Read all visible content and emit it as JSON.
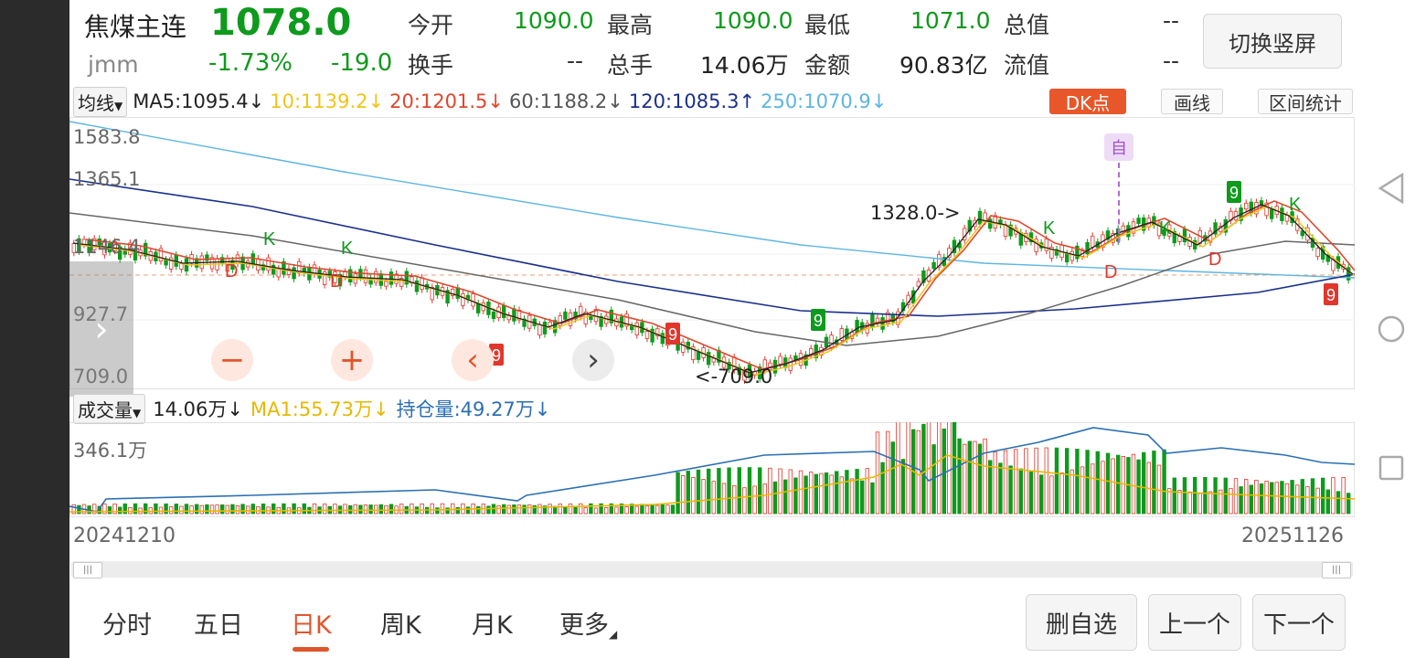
{
  "header": {
    "name": "焦煤主连",
    "code": "jmm",
    "price": "1078.0",
    "change_pct": "-1.73%",
    "change": "-19.0",
    "stats": [
      {
        "label": "今开",
        "value": "1090.0"
      },
      {
        "label": "最高",
        "value": "1090.0"
      },
      {
        "label": "最低",
        "value": "1071.0"
      },
      {
        "label": "总值",
        "value": "--"
      },
      {
        "label": "换手",
        "value": "--"
      },
      {
        "label": "总手",
        "value": "14.06万"
      },
      {
        "label": "金额",
        "value": "90.83亿"
      },
      {
        "label": "流值",
        "value": "--"
      }
    ],
    "switch_button": "切换竖屏"
  },
  "ma_bar": {
    "dropdown": "均线",
    "ma5": "MA5:1095.4↓",
    "ma10": "10:1139.2↓",
    "ma20": "20:1201.5↓",
    "ma60": "60:1188.2↓",
    "ma120": "120:1085.3↑",
    "ma250": "250:1070.9↓",
    "dk_button": "DK点",
    "draw_button": "画线",
    "stats_button": "区间统计"
  },
  "colors": {
    "ma5": "#222222",
    "ma10": "#f0c419",
    "ma20": "#e0462c",
    "ma60": "#666666",
    "ma120": "#1a2f8c",
    "ma250": "#5db5e0",
    "up": "#e0362c",
    "down": "#0e9a1c",
    "signal": "#e8572a"
  },
  "kline": {
    "y_ticks": [
      "1583.8",
      "1365.1",
      "1146.4",
      "927.7",
      "709.0"
    ],
    "high_marker": "1328.0->",
    "low_marker": "<-709.0",
    "self_marker": "自"
  },
  "volume_bar": {
    "dropdown": "成交量",
    "volume": "14.06万↓",
    "ma1": "MA1:55.73万↓",
    "open_interest": "持仓量:49.27万↓",
    "y_tick": "346.1万"
  },
  "dates": {
    "start": "20241210",
    "end": "20251126"
  },
  "tabs": [
    "分时",
    "五日",
    "日K",
    "周K",
    "月K",
    "更多"
  ],
  "active_tab": "日K",
  "actions": {
    "remove": "删自选",
    "prev": "上一个",
    "next": "下一个"
  },
  "controls": {
    "zoom_out": "−",
    "zoom_in": "+",
    "left": "‹",
    "right": "›"
  }
}
